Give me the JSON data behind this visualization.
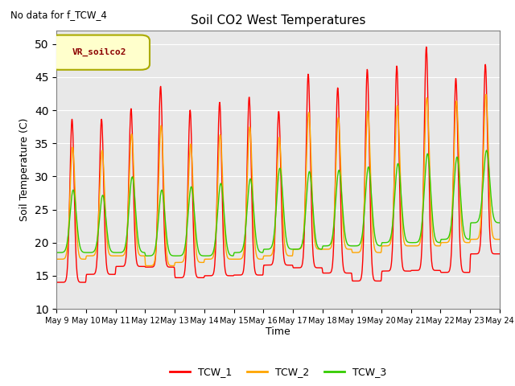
{
  "title": "Soil CO2 West Temperatures",
  "ylabel": "Soil Temperature (C)",
  "xlabel": "Time",
  "annotation": "No data for f_TCW_4",
  "legend_label": "VR_soilco2",
  "ylim": [
    10,
    52
  ],
  "yticks": [
    10,
    15,
    20,
    25,
    30,
    35,
    40,
    45,
    50
  ],
  "xstart_day": 9,
  "xend_day": 24,
  "series": {
    "TCW_1": {
      "color": "#FF0000",
      "label": "TCW_1"
    },
    "TCW_2": {
      "color": "#FFA500",
      "label": "TCW_2"
    },
    "TCW_3": {
      "color": "#33CC00",
      "label": "TCW_3"
    }
  },
  "plot_bg_color": "#E8E8E8",
  "grid_color": "#FFFFFF",
  "tcw1_peaks": [
    38.8,
    14.0,
    38.8,
    15.2,
    40.4,
    16.4,
    43.8,
    16.3,
    40.2,
    14.7,
    41.4,
    15.0,
    42.2,
    15.1,
    40.0,
    16.6,
    45.7,
    16.2,
    43.6,
    15.4,
    46.4,
    14.2,
    46.9,
    15.7,
    49.8,
    15.8,
    45.0,
    15.5,
    47.1,
    18.3
  ],
  "tcw2_peaks": [
    34.5,
    17.5,
    34.0,
    18.0,
    36.5,
    18.0,
    37.8,
    16.5,
    35.0,
    17.0,
    36.4,
    17.5,
    37.6,
    17.5,
    36.0,
    18.0,
    39.8,
    19.0,
    39.0,
    19.0,
    40.0,
    18.5,
    40.8,
    19.5,
    42.0,
    19.5,
    41.5,
    20.0,
    42.5,
    20.5
  ],
  "tcw3_peaks": [
    28.0,
    18.5,
    27.2,
    18.5,
    30.0,
    18.5,
    28.0,
    18.0,
    28.5,
    18.0,
    29.0,
    18.0,
    29.7,
    18.5,
    31.3,
    19.0,
    30.8,
    19.0,
    31.0,
    19.5,
    31.5,
    19.5,
    32.0,
    20.0,
    33.5,
    20.0,
    33.0,
    20.5,
    34.0,
    23.0
  ]
}
